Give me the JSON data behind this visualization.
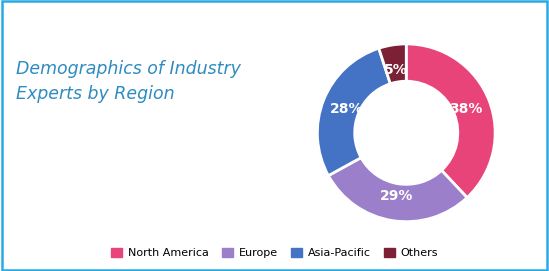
{
  "title_line1": "Demographics of Industry",
  "title_line2": "Experts by Region",
  "title_color": "#2E8BC0",
  "title_fontsize": 12.5,
  "labels": [
    "North America",
    "Europe",
    "Asia-Pacific",
    "Others"
  ],
  "values": [
    38,
    29,
    28,
    5
  ],
  "colors": [
    "#E8447A",
    "#9B7FCA",
    "#4472C4",
    "#7B2035"
  ],
  "pct_labels": [
    "38%",
    "29%",
    "28%",
    "5%"
  ],
  "legend_labels": [
    "North America",
    "Europe",
    "Asia-Pacific",
    "Others"
  ],
  "background_color": "#FFFFFF",
  "border_color": "#29ABE2",
  "donut_width": 0.42,
  "label_r": 0.72
}
